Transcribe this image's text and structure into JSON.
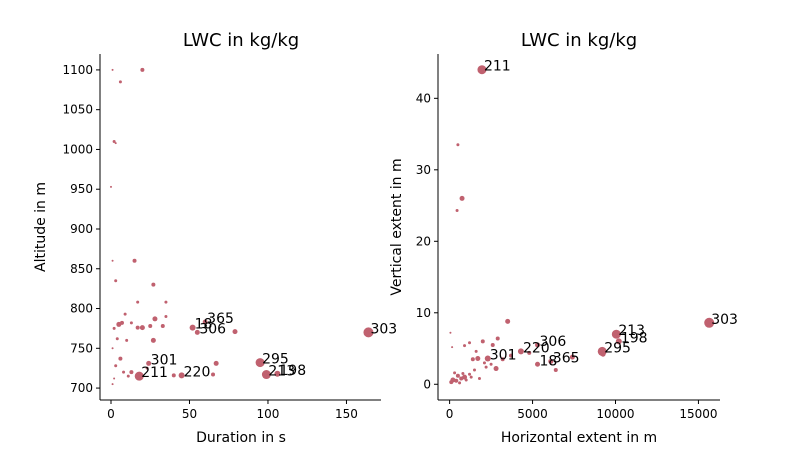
{
  "colors": {
    "marker": "#c0616f"
  },
  "chart_data": [
    {
      "type": "scatter",
      "title": "LWC in kg/kg",
      "xlabel": "Duration in s",
      "ylabel": "Altitude in m",
      "xlim": [
        -7,
        172
      ],
      "ylim": [
        685,
        1120
      ],
      "xticks": [
        0,
        50,
        100,
        150
      ],
      "yticks": [
        700,
        750,
        800,
        850,
        900,
        950,
        1000,
        1050,
        1100
      ],
      "size_encodes": "LWC",
      "points": [
        {
          "x": 164,
          "y": 770,
          "s": 5,
          "label": "303"
        },
        {
          "x": 95,
          "y": 732,
          "s": 4.5,
          "label": "295"
        },
        {
          "x": 99,
          "y": 717,
          "s": 4.5,
          "label": "213"
        },
        {
          "x": 106,
          "y": 718,
          "s": 3,
          "label": "198"
        },
        {
          "x": 18,
          "y": 715,
          "s": 4.5,
          "label": "211"
        },
        {
          "x": 45,
          "y": 716,
          "s": 3,
          "label": "220"
        },
        {
          "x": 24,
          "y": 731,
          "s": 2.5,
          "label": "301"
        },
        {
          "x": 52,
          "y": 776,
          "s": 3,
          "label": "18"
        },
        {
          "x": 55,
          "y": 770,
          "s": 2.5,
          "label": "306"
        },
        {
          "x": 60,
          "y": 783,
          "s": 2.5,
          "label": "365"
        },
        {
          "x": 79,
          "y": 771,
          "s": 2.5
        },
        {
          "x": 65,
          "y": 717,
          "s": 2
        },
        {
          "x": 67,
          "y": 731,
          "s": 2.5
        },
        {
          "x": 40,
          "y": 716,
          "s": 2
        },
        {
          "x": 28,
          "y": 787,
          "s": 2.5
        },
        {
          "x": 27,
          "y": 760,
          "s": 2.5
        },
        {
          "x": 25,
          "y": 778,
          "s": 2
        },
        {
          "x": 20,
          "y": 776,
          "s": 2.5
        },
        {
          "x": 17,
          "y": 776,
          "s": 2
        },
        {
          "x": 33,
          "y": 778,
          "s": 2
        },
        {
          "x": 35,
          "y": 790,
          "s": 1.5
        },
        {
          "x": 27,
          "y": 830,
          "s": 2
        },
        {
          "x": 35,
          "y": 808,
          "s": 1.5
        },
        {
          "x": 15,
          "y": 860,
          "s": 2
        },
        {
          "x": 20,
          "y": 1100,
          "s": 2
        },
        {
          "x": 6,
          "y": 1085,
          "s": 1.5
        },
        {
          "x": 2,
          "y": 1010,
          "s": 1.5
        },
        {
          "x": 3,
          "y": 1008,
          "s": 1
        },
        {
          "x": 0,
          "y": 953,
          "s": 1
        },
        {
          "x": 1,
          "y": 860,
          "s": 1
        },
        {
          "x": 3,
          "y": 835,
          "s": 1.5
        },
        {
          "x": 17,
          "y": 808,
          "s": 1.5
        },
        {
          "x": 9,
          "y": 793,
          "s": 1.5
        },
        {
          "x": 5,
          "y": 780,
          "s": 2.5
        },
        {
          "x": 7,
          "y": 782,
          "s": 2
        },
        {
          "x": 2,
          "y": 775,
          "s": 1.5
        },
        {
          "x": 4,
          "y": 762,
          "s": 1.5
        },
        {
          "x": 10,
          "y": 760,
          "s": 1.5
        },
        {
          "x": 1,
          "y": 750,
          "s": 1
        },
        {
          "x": 6,
          "y": 737,
          "s": 2
        },
        {
          "x": 3,
          "y": 728,
          "s": 1.5
        },
        {
          "x": 13,
          "y": 720,
          "s": 2
        },
        {
          "x": 11,
          "y": 715,
          "s": 1.5
        },
        {
          "x": 2,
          "y": 712,
          "s": 1
        },
        {
          "x": 1,
          "y": 705,
          "s": 1
        },
        {
          "x": 8,
          "y": 720,
          "s": 1.5
        },
        {
          "x": 23,
          "y": 725,
          "s": 1.5
        },
        {
          "x": 13,
          "y": 782,
          "s": 1.5
        },
        {
          "x": 1,
          "y": 1100,
          "s": 1
        }
      ]
    },
    {
      "type": "scatter",
      "title": "LWC in kg/kg",
      "xlabel": "Horizontal extent in m",
      "ylabel": "Vertical extent in m",
      "xlim": [
        -700,
        16300
      ],
      "ylim": [
        -2.2,
        46.2
      ],
      "xticks": [
        0,
        5000,
        10000,
        15000
      ],
      "yticks": [
        0,
        10,
        20,
        30,
        40
      ],
      "size_encodes": "LWC",
      "points": [
        {
          "x": 15650,
          "y": 8.6,
          "s": 5,
          "label": "303"
        },
        {
          "x": 10050,
          "y": 7.0,
          "s": 4.5,
          "label": "213"
        },
        {
          "x": 10200,
          "y": 6.0,
          "s": 3,
          "label": "198"
        },
        {
          "x": 9200,
          "y": 4.6,
          "s": 4.5,
          "label": "295"
        },
        {
          "x": 1950,
          "y": 44.0,
          "s": 4.5,
          "label": "211"
        },
        {
          "x": 5300,
          "y": 5.5,
          "s": 2.5,
          "label": "306"
        },
        {
          "x": 4300,
          "y": 4.6,
          "s": 3,
          "label": "220"
        },
        {
          "x": 2300,
          "y": 3.6,
          "s": 3,
          "label": "301"
        },
        {
          "x": 6100,
          "y": 3.2,
          "s": 2.5,
          "label": "365"
        },
        {
          "x": 5300,
          "y": 2.8,
          "s": 2.5,
          "label": "18"
        },
        {
          "x": 3500,
          "y": 8.8,
          "s": 2.5
        },
        {
          "x": 750,
          "y": 26.0,
          "s": 2.5
        },
        {
          "x": 500,
          "y": 33.5,
          "s": 1.5
        },
        {
          "x": 450,
          "y": 24.3,
          "s": 1.5
        },
        {
          "x": 7400,
          "y": 3.8,
          "s": 2.5
        },
        {
          "x": 6400,
          "y": 2.0,
          "s": 2
        },
        {
          "x": 9250,
          "y": 4.2,
          "s": 2.5
        },
        {
          "x": 2800,
          "y": 2.2,
          "s": 2.5
        },
        {
          "x": 2600,
          "y": 5.5,
          "s": 2
        },
        {
          "x": 2900,
          "y": 6.4,
          "s": 2
        },
        {
          "x": 1700,
          "y": 3.6,
          "s": 2.5
        },
        {
          "x": 1400,
          "y": 3.5,
          "s": 2
        },
        {
          "x": 2000,
          "y": 6.0,
          "s": 2
        },
        {
          "x": 1200,
          "y": 5.8,
          "s": 1.5
        },
        {
          "x": 900,
          "y": 5.4,
          "s": 1.5
        },
        {
          "x": 3200,
          "y": 3.5,
          "s": 2
        },
        {
          "x": 2500,
          "y": 2.8,
          "s": 1.5
        },
        {
          "x": 2100,
          "y": 3.0,
          "s": 1.5
        },
        {
          "x": 3700,
          "y": 4.0,
          "s": 2
        },
        {
          "x": 4800,
          "y": 4.4,
          "s": 2
        },
        {
          "x": 1500,
          "y": 2.0,
          "s": 1.5
        },
        {
          "x": 1200,
          "y": 1.4,
          "s": 1.5
        },
        {
          "x": 900,
          "y": 1.0,
          "s": 2.5
        },
        {
          "x": 700,
          "y": 0.8,
          "s": 2
        },
        {
          "x": 500,
          "y": 1.2,
          "s": 2
        },
        {
          "x": 400,
          "y": 0.5,
          "s": 2
        },
        {
          "x": 200,
          "y": 0.6,
          "s": 2.5
        },
        {
          "x": 100,
          "y": 0.3,
          "s": 2
        },
        {
          "x": 300,
          "y": 1.6,
          "s": 1.5
        },
        {
          "x": 800,
          "y": 1.5,
          "s": 1.5
        },
        {
          "x": 1000,
          "y": 0.6,
          "s": 1.5
        },
        {
          "x": 1800,
          "y": 0.8,
          "s": 1.5
        },
        {
          "x": 50,
          "y": 7.2,
          "s": 1
        },
        {
          "x": 150,
          "y": 5.2,
          "s": 1
        },
        {
          "x": 600,
          "y": 0.2,
          "s": 1.5
        },
        {
          "x": 1300,
          "y": 1.0,
          "s": 1.5
        },
        {
          "x": 2200,
          "y": 2.4,
          "s": 1.5
        },
        {
          "x": 1600,
          "y": 4.6,
          "s": 1.5
        }
      ]
    }
  ]
}
